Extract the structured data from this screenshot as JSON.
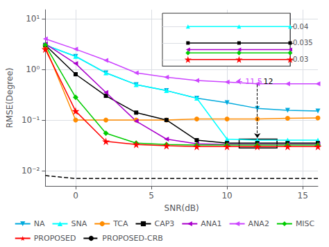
{
  "chart_data": [
    {
      "type": "line",
      "xlabel": "SNR(dB)",
      "ylabel": "RMSE(Degree)",
      "x": [
        -2,
        0,
        2,
        4,
        6,
        8,
        10,
        12,
        14,
        16
      ],
      "series": [
        {
          "name": "NA",
          "color": "#00AADD",
          "marker": "triangle_down",
          "values": [
            3.0,
            1.8,
            0.85,
            0.5,
            0.38,
            0.27,
            0.22,
            0.17,
            0.155,
            0.15
          ]
        },
        {
          "name": "SNA",
          "color": "#00FFFF",
          "marker": "triangle_up",
          "values": [
            3.0,
            1.8,
            0.85,
            0.5,
            0.38,
            0.27,
            0.042,
            0.04,
            0.04,
            0.04
          ]
        },
        {
          "name": "TCA",
          "color": "#FF8C00",
          "marker": "circle",
          "values": [
            2.8,
            0.1,
            0.1,
            0.1,
            0.1,
            0.105,
            0.105,
            0.105,
            0.108,
            0.11
          ]
        },
        {
          "name": "CAP3",
          "color": "#000000",
          "marker": "square",
          "values": [
            3.0,
            0.8,
            0.3,
            0.14,
            0.1,
            0.04,
            0.035,
            0.035,
            0.035,
            0.035
          ]
        },
        {
          "name": "ANA1",
          "color": "#AA00CC",
          "marker": "triangle_left",
          "values": [
            3.2,
            1.3,
            0.35,
            0.095,
            0.042,
            0.034,
            0.033,
            0.033,
            0.033,
            0.033
          ]
        },
        {
          "name": "ANA2",
          "color": "#CC44FF",
          "marker": "triangle_left",
          "values": [
            4.0,
            2.5,
            1.5,
            0.85,
            0.7,
            0.6,
            0.56,
            0.52,
            0.52,
            0.52
          ]
        },
        {
          "name": "MISC",
          "color": "#00CC00",
          "marker": "diamond",
          "values": [
            3.0,
            0.28,
            0.055,
            0.035,
            0.033,
            0.032,
            0.032,
            0.032,
            0.032,
            0.032
          ]
        },
        {
          "name": "PROPOSED",
          "color": "#FF0000",
          "marker": "star",
          "values": [
            2.5,
            0.15,
            0.038,
            0.033,
            0.031,
            0.03,
            0.03,
            0.03,
            0.03,
            0.03
          ]
        },
        {
          "name": "PROPOSED-CRB",
          "color": "#000000",
          "line_style": "dashed",
          "values": [
            0.008,
            0.007,
            0.007,
            0.007,
            0.007,
            0.007,
            0.007,
            0.007,
            0.007,
            0.007
          ]
        }
      ],
      "log": "y",
      "xlim": [
        -2,
        16
      ],
      "xticks": [
        0,
        5,
        10,
        15
      ],
      "ylim": [
        0.005,
        15
      ],
      "yticks": [
        {
          "value": 0.01,
          "label": "10⁻²"
        },
        {
          "value": 0.1,
          "label": "10⁻¹"
        },
        {
          "value": 1,
          "label": "10⁰"
        },
        {
          "value": 10,
          "label": "10¹"
        }
      ],
      "grid": true,
      "legend": "bottom",
      "zoom_box": {
        "x0": 10.8,
        "y0": 0.028,
        "width": 2.5,
        "height": 0.014
      },
      "annotations": [
        {
          "text": "11.5",
          "x": 11.2,
          "y": 0.58,
          "color": "#CC44FF"
        },
        {
          "text": "12",
          "x": 12.4,
          "y": 0.58,
          "color": "#000000"
        }
      ],
      "arrows": [
        {
          "from": [
            11.0,
            0.58
          ],
          "to": [
            10.6,
            0.58
          ],
          "color": "#CC44FF"
        },
        {
          "from": [
            12.0,
            0.5
          ],
          "to": [
            12.0,
            0.044
          ],
          "color": "#000000",
          "line_style": "dashed"
        }
      ]
    },
    {
      "type": "line",
      "x": [
        12,
        14,
        16
      ],
      "series": [
        {
          "name": "SNA",
          "color": "#00FFFF",
          "marker": "triangle_up",
          "values": [
            0.04,
            0.04,
            0.04
          ]
        },
        {
          "name": "CAP3",
          "color": "#000000",
          "marker": "square",
          "values": [
            0.035,
            0.035,
            0.035
          ]
        },
        {
          "name": "ANA1",
          "color": "#AA00CC",
          "marker": "triangle_left",
          "values": [
            0.033,
            0.033,
            0.033
          ]
        },
        {
          "name": "MISC",
          "color": "#00CC00",
          "marker": "diamond",
          "values": [
            0.032,
            0.032,
            0.032
          ]
        },
        {
          "name": "PROPOSED",
          "color": "#FF0000",
          "marker": "star",
          "values": [
            0.03,
            0.03,
            0.03
          ]
        }
      ],
      "xlim": [
        11.0,
        16
      ],
      "ylim": [
        0.028,
        0.044
      ],
      "yticks": [
        0.03,
        0.035,
        0.04
      ],
      "grid": true,
      "tick_labels": "y"
    }
  ]
}
